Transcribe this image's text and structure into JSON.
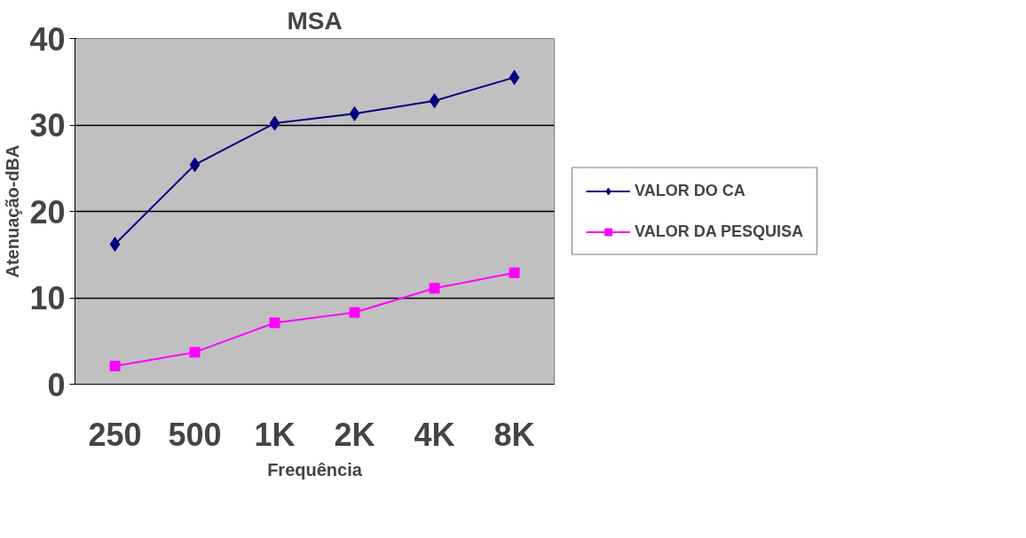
{
  "chart_data": {
    "type": "line",
    "title": "MSA",
    "xlabel": "Frequência",
    "ylabel": "Atenuação-dBA",
    "categories": [
      "250",
      "500",
      "1K",
      "2K",
      "4K",
      "8K"
    ],
    "series": [
      {
        "name": "VALOR DO CA",
        "color": "#000080",
        "marker": "diamond",
        "values": [
          16.2,
          25.4,
          30.2,
          31.3,
          32.8,
          35.5
        ]
      },
      {
        "name": "VALOR DA PESQUISA",
        "color": "#ff00ff",
        "marker": "square",
        "values": [
          2.1,
          3.7,
          7.1,
          8.3,
          11.1,
          12.9
        ]
      }
    ],
    "ylim": [
      0,
      40
    ],
    "yticks": [
      0,
      10,
      20,
      30,
      40
    ],
    "grid": "y",
    "legend": "right",
    "line_style": "solid"
  }
}
